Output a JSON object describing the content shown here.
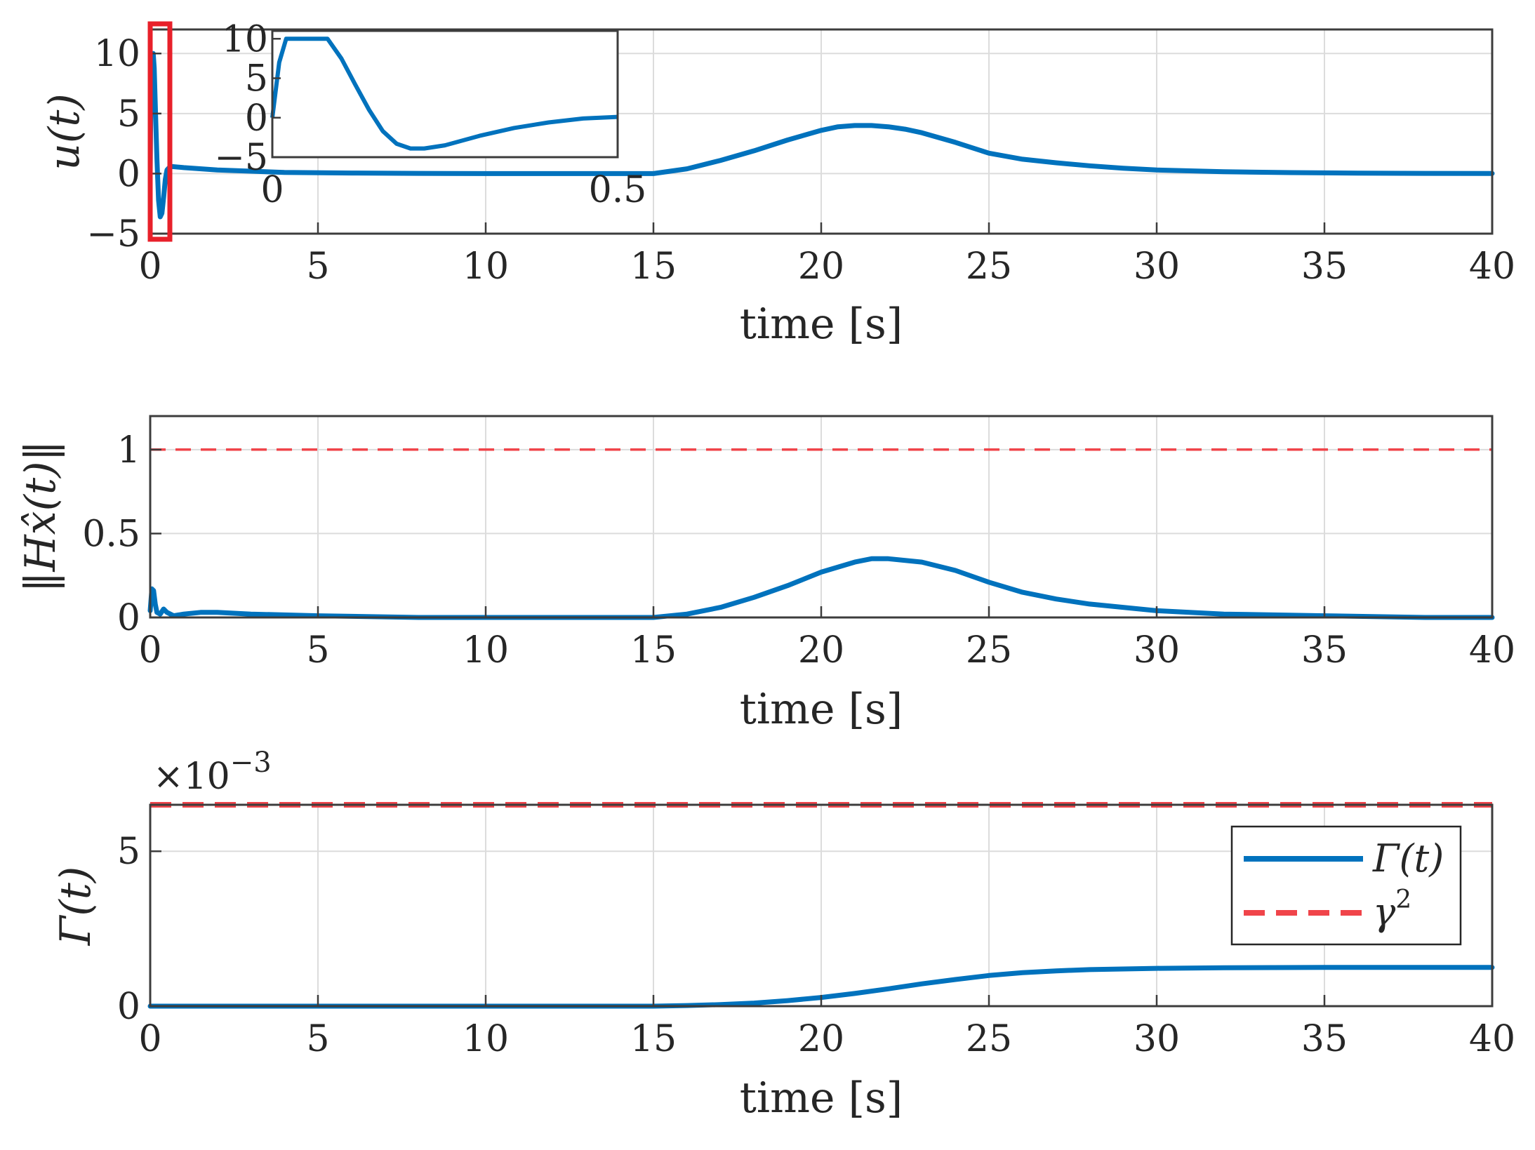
{
  "colors": {
    "signal": "#0072BD",
    "bound": "#F0444A",
    "highlight": "#E8202A"
  },
  "chart_data": [
    {
      "type": "line",
      "id": "top",
      "xlabel": "time [s]",
      "ylabel": "u(t)",
      "xlim": [
        0,
        40
      ],
      "ylim": [
        -5,
        12
      ],
      "xticks": [
        0,
        5,
        10,
        15,
        20,
        25,
        30,
        35,
        40
      ],
      "yticks": [
        -5,
        0,
        5,
        10
      ],
      "xticklabels": [
        "0",
        "5",
        "10",
        "15",
        "20",
        "25",
        "30",
        "35",
        "40"
      ],
      "yticklabels": [
        "−5",
        "0",
        "5",
        "10"
      ],
      "series": [
        {
          "name": "u(t)",
          "style": "solid",
          "x": [
            0,
            0.03,
            0.06,
            0.09,
            0.12,
            0.16,
            0.2,
            0.25,
            0.3,
            0.35,
            0.4,
            0.45,
            0.5,
            0.6,
            1,
            2,
            4,
            6,
            8,
            10,
            12,
            14,
            15,
            16,
            17,
            18,
            19,
            20,
            20.5,
            21,
            21.5,
            22,
            22.5,
            23,
            24,
            25,
            26,
            27,
            28,
            29,
            30,
            32,
            34,
            36,
            38,
            40
          ],
          "y": [
            0,
            10,
            10,
            10,
            8.8,
            5.0,
            1.2,
            -2.2,
            -3.6,
            -3.3,
            -2.0,
            -0.5,
            0.3,
            0.6,
            0.5,
            0.3,
            0.1,
            0.05,
            0.02,
            0.0,
            0.0,
            0.0,
            0.0,
            0.4,
            1.1,
            1.9,
            2.8,
            3.6,
            3.9,
            4.0,
            4.0,
            3.9,
            3.7,
            3.4,
            2.6,
            1.7,
            1.2,
            0.9,
            0.65,
            0.45,
            0.3,
            0.15,
            0.08,
            0.04,
            0.02,
            0.01
          ]
        }
      ],
      "inset": {
        "xlim": [
          0,
          0.5
        ],
        "ylim": [
          -5,
          11
        ],
        "xticklabels": [
          "0",
          "0.5"
        ],
        "yticklabels": [
          "−5",
          "0",
          "5",
          "10"
        ],
        "xticks": [
          0,
          0.5
        ],
        "yticks": [
          -5,
          0,
          5,
          10
        ],
        "x": [
          0,
          0.01,
          0.02,
          0.03,
          0.05,
          0.07,
          0.08,
          0.1,
          0.12,
          0.14,
          0.16,
          0.18,
          0.2,
          0.22,
          0.25,
          0.3,
          0.35,
          0.4,
          0.45,
          0.5
        ],
        "y": [
          0,
          7,
          10,
          10,
          10,
          10,
          10,
          7.5,
          4.2,
          1.0,
          -1.7,
          -3.3,
          -3.9,
          -3.9,
          -3.5,
          -2.3,
          -1.3,
          -0.6,
          -0.1,
          0.1
        ]
      },
      "highlight_box": {
        "x0": 0,
        "x1": 0.5
      }
    },
    {
      "type": "line",
      "id": "middle",
      "xlabel": "time [s]",
      "ylabel": "‖Hx̂(t)‖",
      "xlim": [
        0,
        40
      ],
      "ylim": [
        0,
        1.2
      ],
      "xticks": [
        0,
        5,
        10,
        15,
        20,
        25,
        30,
        35,
        40
      ],
      "yticks": [
        0,
        0.5,
        1
      ],
      "xticklabels": [
        "0",
        "5",
        "10",
        "15",
        "20",
        "25",
        "30",
        "35",
        "40"
      ],
      "yticklabels": [
        "0",
        "0.5",
        "1"
      ],
      "series": [
        {
          "name": "||Hx̂(t)||",
          "style": "solid",
          "x": [
            0,
            0.05,
            0.1,
            0.15,
            0.2,
            0.3,
            0.4,
            0.5,
            0.7,
            1,
            1.5,
            2,
            3,
            5,
            8,
            10,
            12,
            14,
            15,
            16,
            17,
            18,
            19,
            20,
            21,
            21.5,
            22,
            23,
            24,
            25,
            26,
            27,
            28,
            30,
            32,
            35,
            38,
            40
          ],
          "y": [
            0.04,
            0.17,
            0.16,
            0.08,
            0.03,
            0.02,
            0.05,
            0.03,
            0.01,
            0.02,
            0.03,
            0.03,
            0.02,
            0.01,
            0.0,
            0.0,
            0.0,
            0.0,
            0.0,
            0.02,
            0.06,
            0.12,
            0.19,
            0.27,
            0.33,
            0.35,
            0.35,
            0.33,
            0.28,
            0.21,
            0.15,
            0.11,
            0.08,
            0.04,
            0.02,
            0.01,
            0.0,
            0.0
          ]
        },
        {
          "name": "bound",
          "style": "dashed",
          "x": [
            0,
            40
          ],
          "y": [
            1,
            1
          ]
        }
      ]
    },
    {
      "type": "line",
      "id": "bottom",
      "xlabel": "time [s]",
      "ylabel": "Γ(t)",
      "exponent_label": "×10",
      "exponent_power": "−3",
      "xlim": [
        0,
        40
      ],
      "ylim": [
        0,
        6.5
      ],
      "xticks": [
        0,
        5,
        10,
        15,
        20,
        25,
        30,
        35,
        40
      ],
      "yticks": [
        0,
        5
      ],
      "xticklabels": [
        "0",
        "5",
        "10",
        "15",
        "20",
        "25",
        "30",
        "35",
        "40"
      ],
      "yticklabels": [
        "0",
        "5"
      ],
      "series": [
        {
          "name": "Γ(t)",
          "style": "solid",
          "x": [
            0,
            10,
            15,
            16,
            17,
            18,
            19,
            20,
            21,
            22,
            23,
            24,
            25,
            26,
            27,
            28,
            29,
            30,
            32,
            35,
            40
          ],
          "y": [
            0,
            0,
            0,
            0.02,
            0.05,
            0.1,
            0.18,
            0.28,
            0.41,
            0.56,
            0.72,
            0.86,
            0.99,
            1.08,
            1.14,
            1.18,
            1.2,
            1.22,
            1.24,
            1.25,
            1.25
          ]
        },
        {
          "name": "γ",
          "style": "dashed",
          "x": [
            0,
            40
          ],
          "y": [
            6.5,
            6.5
          ]
        }
      ],
      "legend": {
        "entries": [
          {
            "label": "Γ(t)",
            "style": "solid"
          },
          {
            "label": "γ",
            "superscript": "2",
            "style": "dashed"
          }
        ],
        "position": "top-right"
      }
    }
  ]
}
